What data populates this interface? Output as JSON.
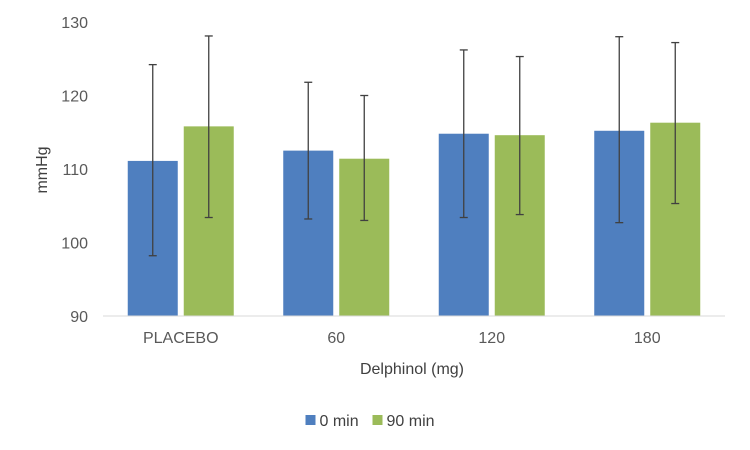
{
  "chart_data": {
    "type": "bar",
    "title": "",
    "xlabel": "Delphinol (mg)",
    "ylabel": "mmHg",
    "ylim": [
      90,
      130
    ],
    "yticks": [
      90,
      100,
      110,
      120,
      130
    ],
    "categories": [
      "PLACEBO",
      "60",
      "120",
      "180"
    ],
    "series": [
      {
        "name": "0 min",
        "color": "#4f7fbf",
        "values": [
          111.1,
          112.5,
          114.8,
          115.2
        ],
        "error_low": [
          98.2,
          103.2,
          103.4,
          102.7
        ],
        "error_high": [
          124.2,
          121.8,
          126.2,
          128.0
        ]
      },
      {
        "name": "90 min",
        "color": "#9bbb59",
        "values": [
          115.8,
          111.4,
          114.6,
          116.3
        ],
        "error_low": [
          103.4,
          103.0,
          103.8,
          105.3
        ],
        "error_high": [
          128.1,
          120.0,
          125.3,
          127.2
        ]
      }
    ],
    "grid": false,
    "legend": "bottom",
    "error_bar_color": "#404040"
  }
}
